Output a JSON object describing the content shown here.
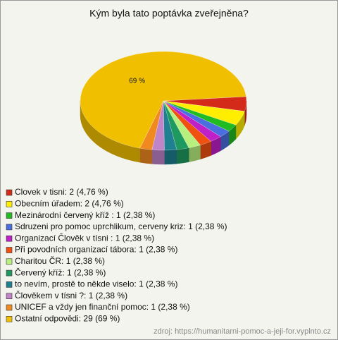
{
  "chart_data": {
    "type": "pie3d",
    "title": "Kým byla tato poptávka zveřejněna?",
    "categories": [
      "Clovek v tisni: 2 (4,76 %)",
      "Obecním úřadem: 2 (4,76 %)",
      "Mezinárodní červený kříž : 1 (2,38 %)",
      "Sdruzeni pro pomoc uprchlikum, cerveny kriz: 1 (2,38 %)",
      "Organizací Člověk v tísni : 1 (2,38 %)",
      "Při povodních organizací tábora: 1 (2,38 %)",
      "Charitou ČR: 1 (2,38 %)",
      "Červený kříž: 1 (2,38 %)",
      "to nevím, prostě to někde viselo: 1 (2,38 %)",
      "Člověkem v tísni ?: 1 (2,38 %)",
      "UNICEF a vždy jen finanční pomoc: 1 (2,38 %)",
      "Ostatní odpovědi: 29 (69 %)"
    ],
    "values": [
      4.76,
      4.76,
      2.38,
      2.38,
      2.38,
      2.38,
      2.38,
      2.38,
      2.38,
      2.38,
      2.38,
      69
    ],
    "value_labels": [
      null,
      null,
      null,
      null,
      null,
      null,
      null,
      null,
      null,
      null,
      null,
      "69 %"
    ],
    "colors": [
      "#d42a1a",
      "#ffee00",
      "#22bb22",
      "#4a6ee0",
      "#c020c8",
      "#f05010",
      "#b8f080",
      "#1e9a60",
      "#1f8090",
      "#c084c8",
      "#f08a20",
      "#f0c000"
    ],
    "source": "zdroj: https://humanitarni-pomoc-a-jeji-for.vyplnto.cz"
  }
}
